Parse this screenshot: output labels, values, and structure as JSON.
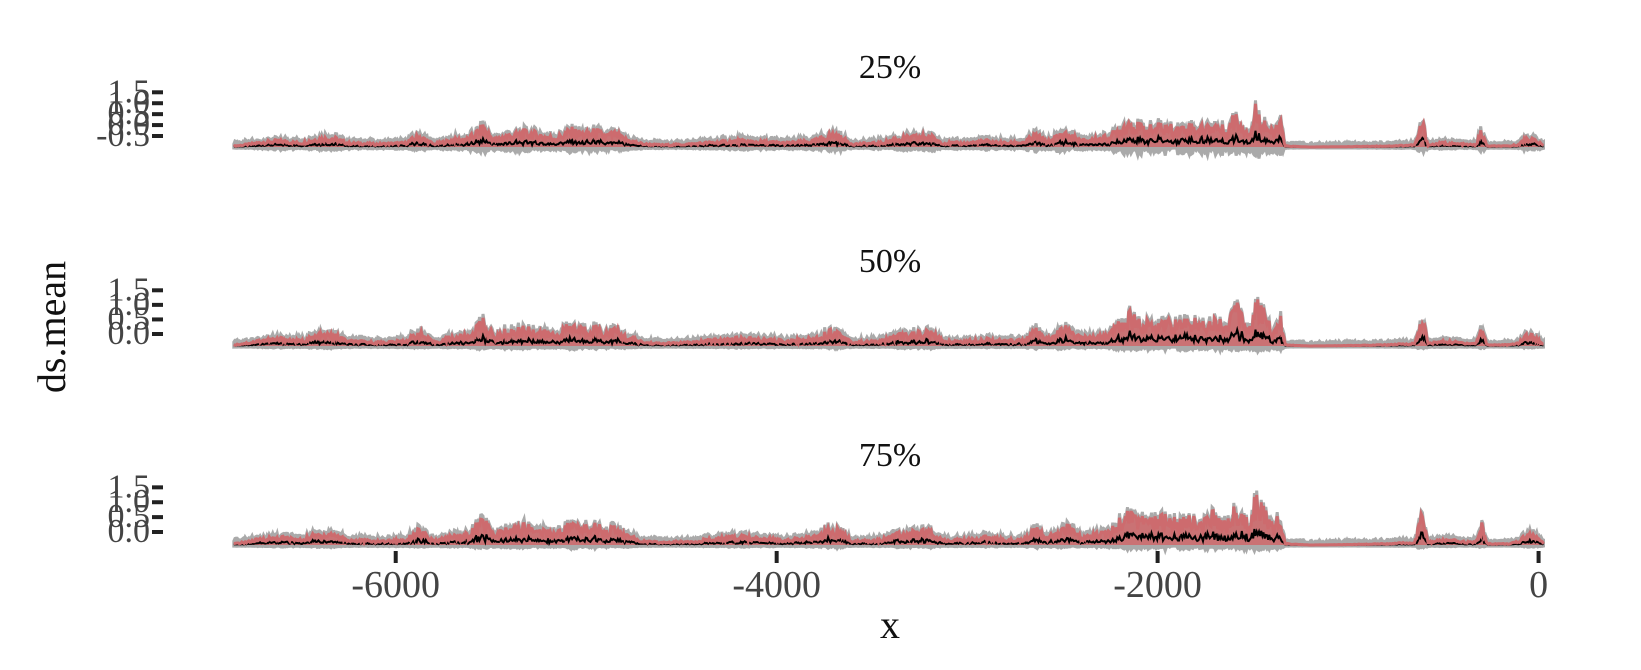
{
  "chart_data": {
    "type": "line",
    "ylabel": "ds.mean",
    "xlabel": "x",
    "x_ticks": [
      -6000,
      -4000,
      -2000,
      0
    ],
    "xlim": [
      -6870,
      60
    ],
    "grid": false,
    "legend": "none",
    "colors": {
      "ribbon": "#aaaaaa",
      "mean_line": "#000000",
      "upper_line": "#cd6b6e",
      "tick": "#222222"
    },
    "panels": [
      {
        "title": "25%",
        "ylim": [
          -0.5,
          2.0
        ],
        "y_ticks": [
          "-0.5",
          "0.0",
          "0.5",
          "1.0",
          "1.5"
        ]
      },
      {
        "title": "50%",
        "ylim": [
          -0.1,
          2.0
        ],
        "y_ticks": [
          "0.0",
          "0.5",
          "1.0",
          "1.5"
        ]
      },
      {
        "title": "75%",
        "ylim": [
          -0.1,
          2.0
        ],
        "y_ticks": [
          "0.0",
          "0.5",
          "1.0",
          "1.5"
        ]
      }
    ],
    "series_profile": {
      "description_points": [
        [
          -6850,
          0.05
        ],
        [
          -6760,
          0.15
        ],
        [
          -6700,
          0.25
        ],
        [
          -6600,
          0.3
        ],
        [
          -6500,
          0.2
        ],
        [
          -6420,
          0.4
        ],
        [
          -6330,
          0.45
        ],
        [
          -6250,
          0.2
        ],
        [
          -6100,
          0.15
        ],
        [
          -5950,
          0.2
        ],
        [
          -5880,
          0.55
        ],
        [
          -5800,
          0.15
        ],
        [
          -5700,
          0.35
        ],
        [
          -5620,
          0.4
        ],
        [
          -5540,
          0.95
        ],
        [
          -5480,
          0.35
        ],
        [
          -5430,
          0.55
        ],
        [
          -5380,
          0.6
        ],
        [
          -5300,
          0.7
        ],
        [
          -5230,
          0.55
        ],
        [
          -5160,
          0.45
        ],
        [
          -5080,
          0.8
        ],
        [
          -5040,
          0.7
        ],
        [
          -5000,
          0.65
        ],
        [
          -4950,
          0.75
        ],
        [
          -4900,
          0.55
        ],
        [
          -4850,
          0.65
        ],
        [
          -4800,
          0.4
        ],
        [
          -4700,
          0.15
        ],
        [
          -4600,
          0.1
        ],
        [
          -4450,
          0.15
        ],
        [
          -4300,
          0.25
        ],
        [
          -4200,
          0.3
        ],
        [
          -4050,
          0.25
        ],
        [
          -3950,
          0.2
        ],
        [
          -3800,
          0.3
        ],
        [
          -3700,
          0.65
        ],
        [
          -3600,
          0.15
        ],
        [
          -3450,
          0.2
        ],
        [
          -3380,
          0.4
        ],
        [
          -3320,
          0.45
        ],
        [
          -3200,
          0.55
        ],
        [
          -3120,
          0.2
        ],
        [
          -3000,
          0.2
        ],
        [
          -2900,
          0.3
        ],
        [
          -2800,
          0.2
        ],
        [
          -2700,
          0.25
        ],
        [
          -2640,
          0.6
        ],
        [
          -2580,
          0.25
        ],
        [
          -2490,
          0.7
        ],
        [
          -2400,
          0.3
        ],
        [
          -2250,
          0.5
        ],
        [
          -2150,
          1.25
        ],
        [
          -2100,
          0.95
        ],
        [
          -2050,
          0.85
        ],
        [
          -1980,
          1.0
        ],
        [
          -1900,
          0.85
        ],
        [
          -1830,
          1.0
        ],
        [
          -1760,
          0.9
        ],
        [
          -1700,
          1.1
        ],
        [
          -1640,
          0.75
        ],
        [
          -1590,
          1.55
        ],
        [
          -1560,
          1.1
        ],
        [
          -1510,
          0.7
        ],
        [
          -1490,
          1.8
        ],
        [
          -1440,
          1.2
        ],
        [
          -1390,
          0.6
        ],
        [
          -1360,
          1.35
        ],
        [
          -1330,
          0.05
        ],
        [
          -1200,
          0.0
        ],
        [
          -1000,
          0.02
        ],
        [
          -800,
          0.05
        ],
        [
          -650,
          0.1
        ],
        [
          -610,
          1.2
        ],
        [
          -580,
          0.1
        ],
        [
          -500,
          0.2
        ],
        [
          -420,
          0.15
        ],
        [
          -330,
          0.1
        ],
        [
          -300,
          0.75
        ],
        [
          -270,
          0.05
        ],
        [
          -150,
          0.05
        ],
        [
          -100,
          0.15
        ],
        [
          -60,
          0.5
        ],
        [
          -20,
          0.35
        ],
        [
          30,
          0.05
        ]
      ]
    }
  }
}
